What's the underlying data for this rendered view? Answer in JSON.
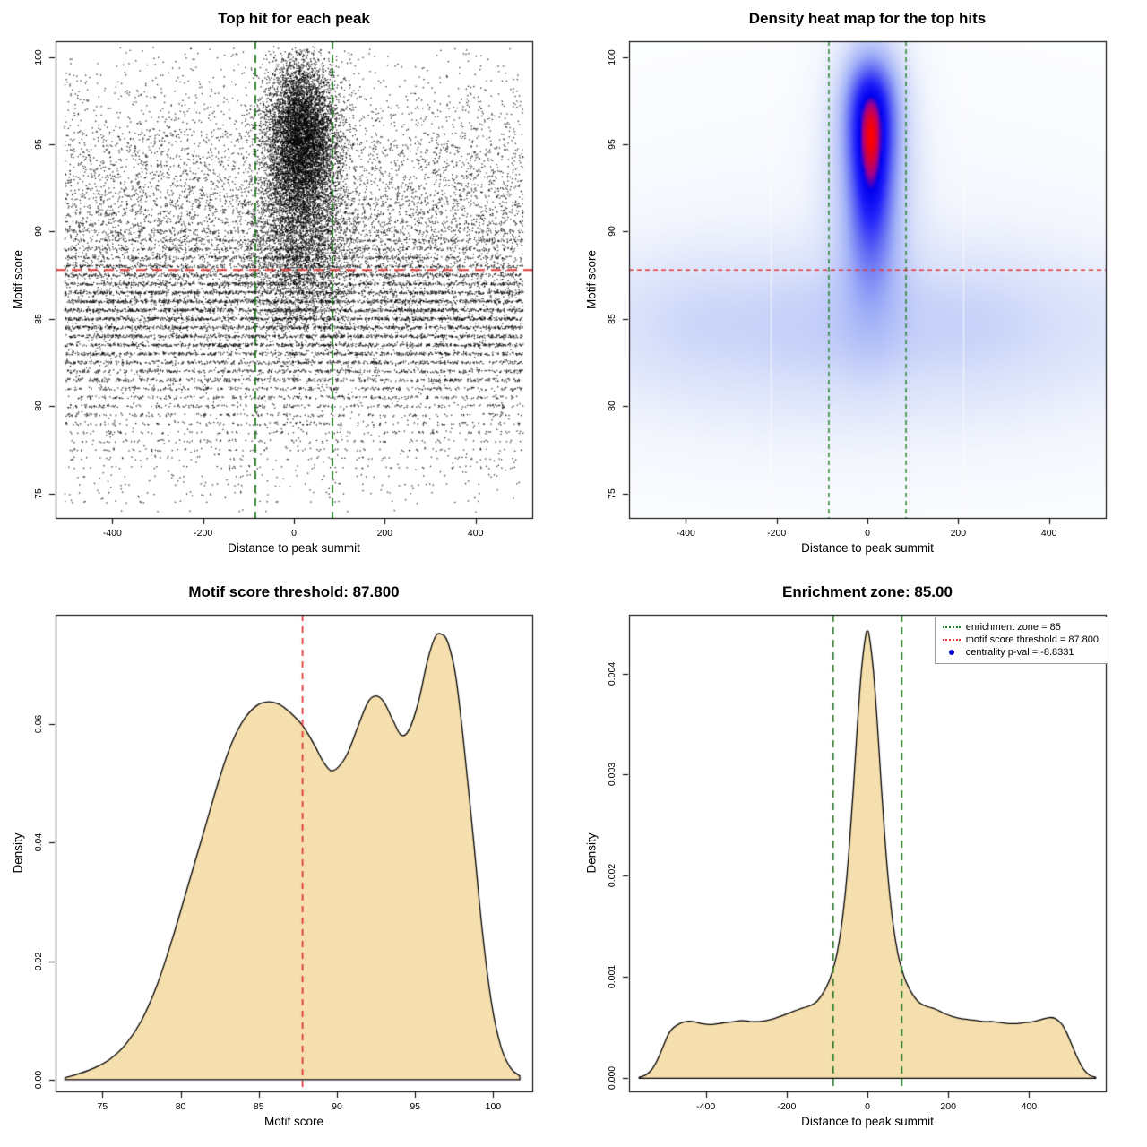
{
  "page": {
    "background": "#ffffff"
  },
  "chart_data": [
    {
      "id": "top-hit-scatter",
      "type": "scatter",
      "title": "Top hit for each peak",
      "xlabel": "Distance to peak summit",
      "ylabel": "Motif score",
      "xlim": [
        -525,
        525
      ],
      "ylim": [
        73.6,
        100.9
      ],
      "xticks": [
        -400,
        -200,
        0,
        200,
        400
      ],
      "xtick_labels": [
        "-400",
        "-200",
        "0",
        "200",
        "400"
      ],
      "yticks": [
        75,
        80,
        85,
        90,
        95,
        100
      ],
      "ytick_labels": [
        "75",
        "80",
        "85",
        "90",
        "95",
        "100"
      ],
      "n_points": 28000,
      "seed": 13,
      "point_color": "#000000",
      "clip_x": [
        -506,
        506
      ],
      "clip_y": [
        73.9,
        100.6
      ],
      "components": [
        {
          "weight": 0.27,
          "x": {
            "dist": "uniform",
            "min": -505,
            "max": 505
          },
          "y": {
            "dist": "normal",
            "mean": 85.6,
            "sd": 2.6
          },
          "y_quantize": 0.5
        },
        {
          "weight": 0.17,
          "x": {
            "dist": "uniform",
            "min": -505,
            "max": 505
          },
          "y": {
            "dist": "normal",
            "mean": 89.5,
            "sd": 3.8
          }
        },
        {
          "weight": 0.09,
          "x": {
            "dist": "uniform",
            "min": -505,
            "max": 505
          },
          "y": {
            "dist": "normal",
            "mean": 81.5,
            "sd": 3.2
          },
          "y_quantize": 0.5
        },
        {
          "weight": 0.04,
          "x": {
            "dist": "uniform",
            "min": -505,
            "max": 505
          },
          "y": {
            "dist": "uniform",
            "min": 74.5,
            "max": 100.5
          }
        },
        {
          "weight": 0.05,
          "x": {
            "dist": "uniform",
            "min": -505,
            "max": 505
          },
          "y": {
            "dist": "normal",
            "mean": 94,
            "sd": 2.8
          }
        },
        {
          "weight": 0.25,
          "x": {
            "dist": "normal",
            "mean": 18,
            "sd": 38
          },
          "y": {
            "dist": "normal",
            "mean": 95.4,
            "sd": 2.2
          }
        },
        {
          "weight": 0.13,
          "x": {
            "dist": "normal",
            "mean": 14,
            "sd": 52
          },
          "y": {
            "dist": "normal",
            "mean": 89.8,
            "sd": 2.9
          }
        }
      ],
      "hlines": [
        {
          "y": 87.8,
          "color": "#e03a36",
          "dash": [
            11,
            7
          ],
          "width": 2
        }
      ],
      "vlines": [
        {
          "x": -85,
          "color": "#1e7d1e",
          "dash": [
            9,
            6
          ],
          "width": 1.8
        },
        {
          "x": 85,
          "color": "#1e7d1e",
          "dash": [
            9,
            6
          ],
          "width": 1.8
        }
      ]
    },
    {
      "id": "top-hit-heatmap",
      "type": "heatmap",
      "title": "Density heat map for the top hits",
      "xlabel": "Distance to peak summit",
      "ylabel": "Motif score",
      "xlim": [
        -525,
        525
      ],
      "ylim": [
        73.6,
        100.9
      ],
      "xticks": [
        -400,
        -200,
        0,
        200,
        400
      ],
      "xtick_labels": [
        "-400",
        "-200",
        "0",
        "200",
        "400"
      ],
      "yticks": [
        75,
        80,
        85,
        90,
        95,
        100
      ],
      "ytick_labels": [
        "75",
        "80",
        "85",
        "90",
        "95",
        "100"
      ],
      "gamma": 0.62,
      "ramp": [
        [
          0.0,
          [
            255,
            255,
            255
          ]
        ],
        [
          0.1,
          [
            243,
            246,
            253
          ]
        ],
        [
          0.22,
          [
            216,
            224,
            250
          ]
        ],
        [
          0.4,
          [
            163,
            178,
            247
          ]
        ],
        [
          0.58,
          [
            97,
            106,
            244
          ]
        ],
        [
          0.74,
          [
            32,
            32,
            250
          ]
        ],
        [
          0.86,
          [
            0,
            0,
            238
          ]
        ],
        [
          0.92,
          [
            160,
            0,
            140
          ]
        ],
        [
          1.0,
          [
            255,
            0,
            0
          ]
        ]
      ],
      "density_components": [
        {
          "x": 8,
          "y": 96.2,
          "sx": 34,
          "sy": 2.1,
          "w": 1.1
        },
        {
          "x": 8,
          "y": 97.9,
          "sx": 34,
          "sy": 1.4,
          "w": 0.38
        },
        {
          "x": 8,
          "y": 93.8,
          "sx": 28,
          "sy": 2.3,
          "w": 0.7
        },
        {
          "x": 8,
          "y": 91.2,
          "sx": 31,
          "sy": 2.4,
          "w": 0.45
        },
        {
          "x": 8,
          "y": 95.5,
          "sx": 62,
          "sy": 4.5,
          "w": 0.3
        },
        {
          "x": 8,
          "y": 91.0,
          "sx": 58,
          "sy": 5.0,
          "w": 0.22
        },
        {
          "x": 8,
          "y": 88.5,
          "sx": 40,
          "sy": 3.0,
          "w": 0.18
        },
        {
          "x": 0,
          "y": 85.2,
          "sx": 550,
          "sy": 2.7,
          "w": 0.11
        },
        {
          "x": 0,
          "y": 83.6,
          "sx": 550,
          "sy": 3.4,
          "w": 0.085
        },
        {
          "x": -390,
          "y": 85.0,
          "sx": 95,
          "sy": 2.8,
          "w": 0.05
        },
        {
          "x": -140,
          "y": 84.6,
          "sx": 110,
          "sy": 3.0,
          "w": 0.045
        },
        {
          "x": 230,
          "y": 85.0,
          "sx": 120,
          "sy": 2.8,
          "w": 0.045
        },
        {
          "x": 0,
          "y": 87.5,
          "sx": 550,
          "sy": 7.0,
          "w": 0.045
        },
        {
          "x": 0,
          "y": 80.5,
          "sx": 500,
          "sy": 4.0,
          "w": 0.035
        }
      ],
      "white_gridlines": [
        -212,
        212
      ],
      "hlines": [
        {
          "y": 87.8,
          "color": "#e03a36",
          "dash": [
            5,
            4
          ],
          "width": 1.4
        }
      ],
      "vlines": [
        {
          "x": -85,
          "color": "#1e7d1e",
          "dash": [
            5,
            4
          ],
          "width": 1.4
        },
        {
          "x": 85,
          "color": "#1e7d1e",
          "dash": [
            5,
            4
          ],
          "width": 1.4
        }
      ]
    },
    {
      "id": "motif-score-density",
      "type": "area",
      "title": "Motif score threshold: 87.800",
      "xlabel": "Motif score",
      "ylabel": "Density",
      "xlim": [
        72,
        102.5
      ],
      "ylim": [
        -0.002,
        0.0785
      ],
      "xticks": [
        75,
        80,
        85,
        90,
        95,
        100
      ],
      "xtick_labels": [
        "75",
        "80",
        "85",
        "90",
        "95",
        "100"
      ],
      "yticks": [
        0,
        0.02,
        0.04,
        0.06
      ],
      "ytick_labels": [
        "0.00",
        "0.02",
        "0.04",
        "0.06"
      ],
      "fill": "#f6dfae",
      "stroke": "#000000",
      "curve": {
        "x": [
          72.6,
          73.5,
          74.5,
          75.5,
          76.5,
          77.5,
          78.5,
          79.5,
          80.5,
          81.5,
          82.5,
          83.3,
          84.1,
          84.9,
          85.6,
          86.3,
          87.0,
          87.8,
          88.5,
          89.1,
          89.6,
          90.1,
          90.7,
          91.4,
          92.0,
          92.5,
          93.0,
          93.6,
          94.1,
          94.6,
          95.2,
          95.8,
          96.3,
          96.7,
          97.1,
          97.6,
          98.1,
          98.7,
          99.3,
          99.9,
          100.5,
          101.1,
          101.7
        ],
        "y": [
          0.0003,
          0.001,
          0.002,
          0.0035,
          0.006,
          0.01,
          0.016,
          0.024,
          0.033,
          0.042,
          0.051,
          0.057,
          0.061,
          0.0632,
          0.0638,
          0.0634,
          0.062,
          0.0598,
          0.0568,
          0.0538,
          0.0522,
          0.0528,
          0.0552,
          0.06,
          0.0638,
          0.0648,
          0.0638,
          0.0606,
          0.0582,
          0.059,
          0.0636,
          0.0708,
          0.0748,
          0.0752,
          0.0738,
          0.0682,
          0.0572,
          0.0416,
          0.0252,
          0.0128,
          0.0055,
          0.002,
          0.0006
        ]
      },
      "vlines": [
        {
          "x": 87.8,
          "color": "#e03a36",
          "dash": [
            7,
            6
          ],
          "width": 1.8
        }
      ]
    },
    {
      "id": "distance-density",
      "type": "area",
      "title": "Enrichment zone: 85.00",
      "xlabel": "Distance to peak summit",
      "ylabel": "Density",
      "xlim": [
        -590,
        590
      ],
      "ylim": [
        -0.00013,
        0.00458
      ],
      "xticks": [
        -400,
        -200,
        0,
        200,
        400
      ],
      "xtick_labels": [
        "-400",
        "-200",
        "0",
        "200",
        "400"
      ],
      "yticks": [
        0,
        0.001,
        0.002,
        0.003,
        0.004
      ],
      "ytick_labels": [
        "0.000",
        "0.001",
        "0.002",
        "0.003",
        "0.004"
      ],
      "fill": "#f6dfae",
      "stroke": "#000000",
      "curve": {
        "x": [
          -565,
          -550,
          -535,
          -520,
          -505,
          -492,
          -480,
          -465,
          -450,
          -430,
          -410,
          -390,
          -370,
          -350,
          -330,
          -310,
          -290,
          -270,
          -250,
          -230,
          -210,
          -190,
          -170,
          -155,
          -140,
          -125,
          -110,
          -95,
          -85,
          -75,
          -65,
          -55,
          -45,
          -35,
          -25,
          -15,
          -5,
          0,
          5,
          15,
          25,
          35,
          45,
          55,
          65,
          75,
          85,
          95,
          110,
          125,
          140,
          155,
          170,
          190,
          210,
          230,
          250,
          270,
          290,
          310,
          330,
          350,
          370,
          390,
          410,
          430,
          450,
          465,
          480,
          492,
          505,
          520,
          535,
          550,
          565
        ],
        "y": [
          1e-05,
          3e-05,
          8e-05,
          0.00018,
          0.00032,
          0.00044,
          0.0005,
          0.00054,
          0.00056,
          0.00056,
          0.00054,
          0.00053,
          0.00054,
          0.00055,
          0.00056,
          0.00057,
          0.00056,
          0.00056,
          0.00057,
          0.00059,
          0.00062,
          0.00065,
          0.00068,
          0.0007,
          0.00072,
          0.00076,
          0.00084,
          0.00096,
          0.00108,
          0.00124,
          0.00148,
          0.00182,
          0.00228,
          0.00285,
          0.00348,
          0.00402,
          0.00436,
          0.00442,
          0.00436,
          0.00402,
          0.00348,
          0.00285,
          0.00228,
          0.00182,
          0.00148,
          0.00124,
          0.00108,
          0.00096,
          0.00084,
          0.00076,
          0.00072,
          0.0007,
          0.00068,
          0.00064,
          0.00061,
          0.00059,
          0.00058,
          0.00057,
          0.00056,
          0.00056,
          0.00055,
          0.00054,
          0.00054,
          0.00055,
          0.00056,
          0.00058,
          0.0006,
          0.00059,
          0.00054,
          0.00046,
          0.00034,
          0.0002,
          9e-05,
          3e-05,
          1e-05
        ]
      },
      "vlines": [
        {
          "x": -85,
          "color": "#1e7d1e",
          "dash": [
            8,
            6
          ],
          "width": 1.8
        },
        {
          "x": 85,
          "color": "#1e7d1e",
          "dash": [
            8,
            6
          ],
          "width": 1.8
        }
      ],
      "legend": {
        "items": [
          {
            "label": "enrichment zone = 85",
            "type": "line",
            "color": "#1e7d1e"
          },
          {
            "label": "motif score threshold = 87.800",
            "type": "line",
            "color": "#e03a36"
          },
          {
            "label": "centrality p-val = -8.8331",
            "type": "point",
            "color": "#0000cc"
          }
        ]
      }
    }
  ]
}
